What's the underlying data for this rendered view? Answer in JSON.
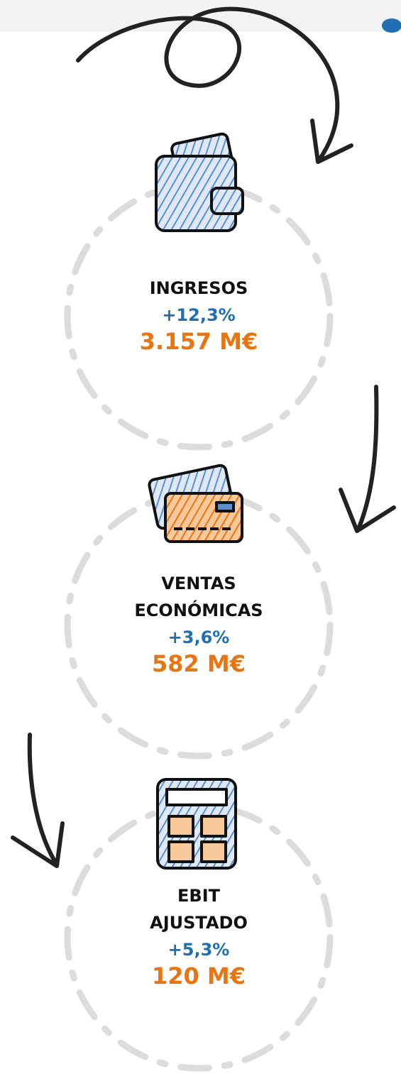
{
  "items": [
    {
      "label": [
        "INGRESOS"
      ],
      "change": "+12,3%",
      "value": "3.157 M€"
    },
    {
      "label": [
        "VENTAS",
        "ECONÓMICAS"
      ],
      "change": "+3,6%",
      "value": "582 M€"
    },
    {
      "label": [
        "EBIT",
        "AJUSTADO"
      ],
      "change": "+5,3%",
      "value": "120 M€"
    }
  ]
}
